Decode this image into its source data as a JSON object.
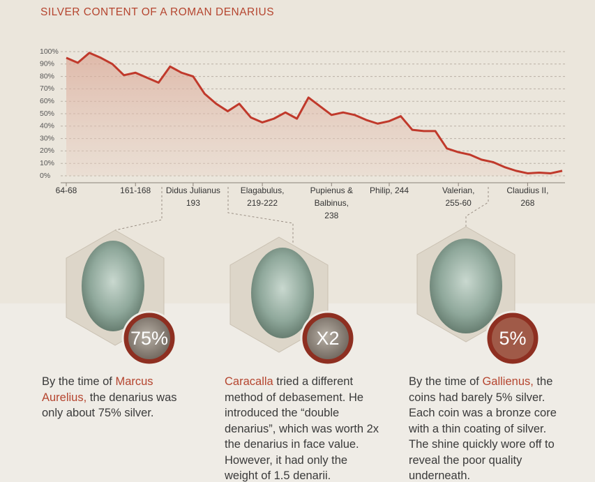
{
  "chart_data": {
    "type": "line",
    "title": "SILVER CONTENT OF A ROMAN DENARIUS",
    "categories": [
      "64-68",
      null,
      null,
      null,
      null,
      null,
      "161-168",
      null,
      null,
      null,
      null,
      "Didus Julianus\n193",
      null,
      null,
      null,
      null,
      null,
      "Elagabulus,\n219-222",
      null,
      null,
      null,
      null,
      null,
      "Pupienus &\nBalbinus,\n238",
      null,
      null,
      null,
      null,
      "Philip, 244",
      null,
      null,
      null,
      null,
      null,
      "Valerian,\n255-60",
      null,
      null,
      null,
      null,
      null,
      "Claudius II,\n268",
      null,
      null,
      null
    ],
    "values": [
      95,
      91,
      99,
      95,
      90,
      81,
      83,
      79,
      75,
      88,
      83,
      80,
      66,
      58,
      52,
      58,
      47,
      43,
      46,
      51,
      46,
      63,
      56,
      49,
      51,
      49,
      45,
      42,
      44,
      48,
      37,
      36,
      36,
      22,
      19,
      17,
      13,
      11,
      7,
      4,
      2,
      2.5,
      2,
      4
    ],
    "color": "#c0392b",
    "ylim": [
      0,
      100
    ],
    "yticks": [
      {
        "value": 0,
        "label": "0%"
      },
      {
        "value": 10,
        "label": "10%"
      },
      {
        "value": 20,
        "label": "20%"
      },
      {
        "value": 30,
        "label": "30%"
      },
      {
        "value": 40,
        "label": "40%"
      },
      {
        "value": 50,
        "label": "50%"
      },
      {
        "value": 60,
        "label": "60%"
      },
      {
        "value": 70,
        "label": "70%"
      },
      {
        "value": 80,
        "label": "80%"
      },
      {
        "value": 90,
        "label": "90%"
      },
      {
        "value": 100,
        "label": "100%"
      }
    ],
    "grid": true
  },
  "panels": [
    {
      "badge": "75%",
      "before": "By the time of ",
      "name": "Marcus Aurelius,",
      "after": " the denarius was only about 75% silver."
    },
    {
      "badge": "X2",
      "name": "Caracalla",
      "after": " tried a different method of debasement. He introduced the “double denarius”, which was worth 2x the denarius in face value. However, it had only the weight of 1.5 denarii."
    },
    {
      "badge": "5%",
      "before": "By the time of ",
      "name": "Gallienus,",
      "after": " the coins had barely 5% silver. Each coin was a bronze core with a thin coating of silver. The shine quickly wore off to reveal the poor quality underneath."
    }
  ]
}
